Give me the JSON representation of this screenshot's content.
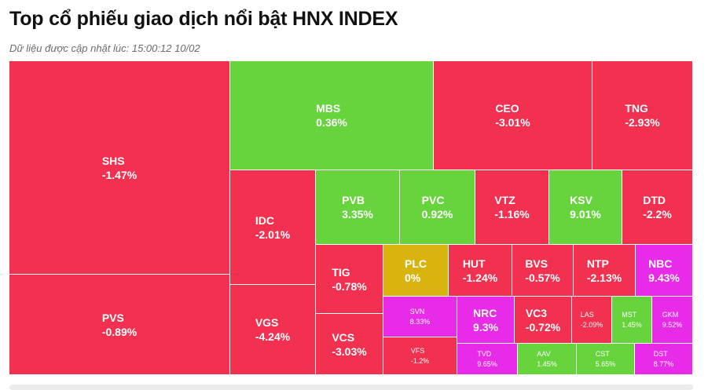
{
  "title": "Top cổ phiếu giao dịch nổi bật HNX INDEX",
  "subtitle": "Dữ liệu được cập nhật lúc: 15:00:12 10/02",
  "colors": {
    "down": "#f2304f",
    "up": "#67d43d",
    "ref": "#d8b40e",
    "ceiling": "#e82be8"
  },
  "tiles": [
    {
      "symbol": "SHS",
      "change": "-1.47%",
      "status": "down"
    },
    {
      "symbol": "PVS",
      "change": "-0.89%",
      "status": "down"
    },
    {
      "symbol": "MBS",
      "change": "0.36%",
      "status": "up"
    },
    {
      "symbol": "CEO",
      "change": "-3.01%",
      "status": "down"
    },
    {
      "symbol": "TNG",
      "change": "-2.93%",
      "status": "down"
    },
    {
      "symbol": "IDC",
      "change": "-2.01%",
      "status": "down"
    },
    {
      "symbol": "VGS",
      "change": "-4.24%",
      "status": "down"
    },
    {
      "symbol": "PVB",
      "change": "3.35%",
      "status": "up"
    },
    {
      "symbol": "PVC",
      "change": "0.92%",
      "status": "up"
    },
    {
      "symbol": "VTZ",
      "change": "-1.16%",
      "status": "down"
    },
    {
      "symbol": "KSV",
      "change": "9.01%",
      "status": "up"
    },
    {
      "symbol": "DTD",
      "change": "-2.2%",
      "status": "down"
    },
    {
      "symbol": "TIG",
      "change": "-0.78%",
      "status": "down"
    },
    {
      "symbol": "VCS",
      "change": "-3.03%",
      "status": "down"
    },
    {
      "symbol": "PLC",
      "change": "0%",
      "status": "ref"
    },
    {
      "symbol": "HUT",
      "change": "-1.24%",
      "status": "down"
    },
    {
      "symbol": "BVS",
      "change": "-0.57%",
      "status": "down"
    },
    {
      "symbol": "NTP",
      "change": "-2.13%",
      "status": "down"
    },
    {
      "symbol": "NBC",
      "change": "9.43%",
      "status": "ceiling"
    },
    {
      "symbol": "SVN",
      "change": "8.33%",
      "status": "ceiling"
    },
    {
      "symbol": "NRC",
      "change": "9.3%",
      "status": "ceiling"
    },
    {
      "symbol": "VC3",
      "change": "-0.72%",
      "status": "down"
    },
    {
      "symbol": "LAS",
      "change": "-2.09%",
      "status": "down"
    },
    {
      "symbol": "MST",
      "change": "1.45%",
      "status": "up"
    },
    {
      "symbol": "GKM",
      "change": "9.52%",
      "status": "ceiling"
    },
    {
      "symbol": "VFS",
      "change": "-1.2%",
      "status": "down"
    },
    {
      "symbol": "TVD",
      "change": "9.65%",
      "status": "ceiling"
    },
    {
      "symbol": "AAV",
      "change": "1.45%",
      "status": "up"
    },
    {
      "symbol": "CST",
      "change": "5.65%",
      "status": "up"
    },
    {
      "symbol": "DST",
      "change": "8.77%",
      "status": "ceiling"
    }
  ]
}
